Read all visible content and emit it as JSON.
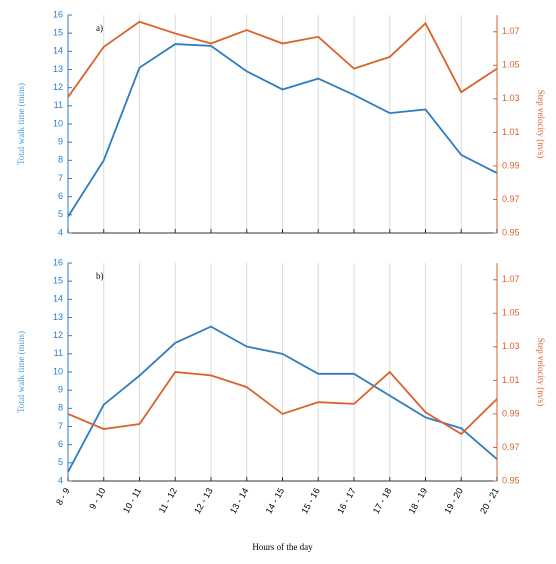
{
  "chart_data": [
    {
      "type": "line",
      "label": "a)",
      "ylabel": "Total walk time (mins)",
      "y2label": "Step velocity (m/s)",
      "ylim": [
        4,
        16
      ],
      "yticks": [
        4,
        5,
        6,
        7,
        8,
        9,
        10,
        11,
        12,
        13,
        14,
        15,
        16
      ],
      "y2lim": [
        0.95,
        1.08
      ],
      "y2ticks": [
        0.95,
        0.97,
        0.99,
        1.01,
        1.03,
        1.05,
        1.07
      ],
      "grid": true,
      "series": [
        {
          "color": "#2f7dc0",
          "values": [
            4.9,
            8.0,
            13.1,
            14.4,
            14.3,
            12.9,
            11.9,
            12.5,
            11.6,
            10.6,
            10.8,
            8.3,
            7.3
          ]
        },
        {
          "color": "#d9622b",
          "axis": "y2",
          "values": [
            1.031,
            1.061,
            1.076,
            1.069,
            1.063,
            1.071,
            1.063,
            1.067,
            1.048,
            1.055,
            1.075,
            1.034,
            1.048
          ]
        }
      ]
    },
    {
      "type": "line",
      "label": "b)",
      "ylabel": "Total walk time (mins)",
      "y2label": "Step velocity (m/s)",
      "xlabel": "Hours of the day",
      "categories": [
        "8 - 9",
        "9 - 10",
        "10 - 11",
        "11 - 12",
        "12 - 13",
        "13 - 14",
        "14 - 15",
        "15 - 16",
        "16 - 17",
        "17 - 18",
        "18 - 19",
        "19 - 20",
        "20 - 21"
      ],
      "ylim": [
        4,
        16
      ],
      "yticks": [
        4,
        5,
        6,
        7,
        8,
        9,
        10,
        11,
        12,
        13,
        14,
        15,
        16
      ],
      "y2lim": [
        0.95,
        1.08
      ],
      "y2ticks": [
        0.95,
        0.97,
        0.99,
        1.01,
        1.03,
        1.05,
        1.07
      ],
      "grid": true,
      "series": [
        {
          "color": "#2f7dc0",
          "values": [
            4.5,
            8.2,
            9.8,
            11.6,
            12.5,
            11.4,
            11.0,
            9.9,
            9.9,
            8.7,
            7.5,
            6.9,
            5.2
          ]
        },
        {
          "color": "#d9622b",
          "axis": "y2",
          "values": [
            0.99,
            0.981,
            0.984,
            1.015,
            1.013,
            1.006,
            0.99,
            0.997,
            0.996,
            1.015,
            0.991,
            0.978,
            0.999
          ]
        }
      ]
    }
  ]
}
